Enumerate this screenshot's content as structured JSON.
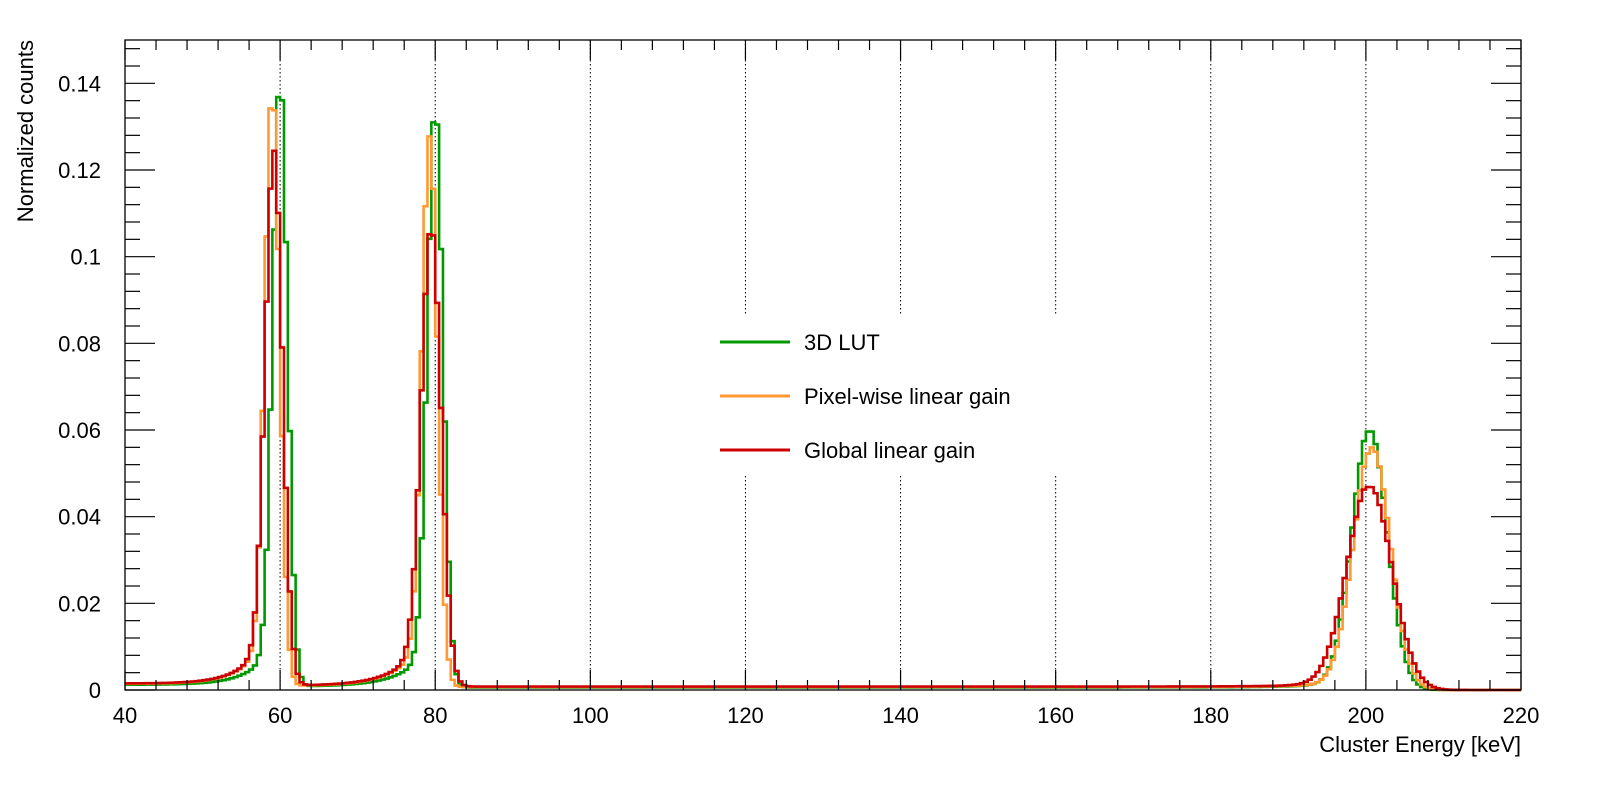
{
  "chart_data": {
    "type": "line",
    "title": "",
    "xlabel": "Cluster Energy [keV]",
    "ylabel": "Normalized counts",
    "xlim": [
      40,
      220
    ],
    "ylim": [
      0,
      0.15
    ],
    "xticks": [
      40,
      60,
      80,
      100,
      120,
      140,
      160,
      180,
      200,
      220
    ],
    "xtick_labels": [
      "40",
      "60",
      "80",
      "100",
      "120",
      "140",
      "160",
      "180",
      "200",
      "220"
    ],
    "yticks": [
      0,
      0.02,
      0.04,
      0.06,
      0.08,
      0.1,
      0.12,
      0.14
    ],
    "ytick_labels": [
      "0",
      "0.02",
      "0.04",
      "0.06",
      "0.08",
      "0.1",
      "0.12",
      "0.14"
    ],
    "vertical_reference_lines": [
      60,
      80,
      100,
      120,
      140,
      160,
      180,
      200
    ],
    "grid": "vertical dotted at x ticks",
    "legend_position": "center",
    "series": [
      {
        "name": "3D LUT",
        "color": "#009900",
        "peaks": [
          {
            "center": 60.0,
            "height": 0.14,
            "sigma": 0.95,
            "tail": 0.012,
            "tailscale": 3.0
          },
          {
            "center": 80.0,
            "height": 0.134,
            "sigma": 1.0,
            "tail": 0.011,
            "tailscale": 3.5
          },
          {
            "center": 200.5,
            "height": 0.06,
            "sigma": 2.25,
            "tail": 0.002,
            "tailscale": 5.0
          }
        ],
        "baseline": [
          {
            "from": 40,
            "to": 60,
            "value": 0.0012
          },
          {
            "from": 60,
            "to": 80,
            "value": 0.0008
          },
          {
            "from": 80,
            "to": 200,
            "value": 0.0006
          }
        ]
      },
      {
        "name": "Pixel-wise linear gain",
        "color": "#ff9933",
        "peaks": [
          {
            "center": 59.0,
            "height": 0.137,
            "sigma": 0.95,
            "tail": 0.014,
            "tailscale": 3.0
          },
          {
            "center": 79.3,
            "height": 0.127,
            "sigma": 1.0,
            "tail": 0.013,
            "tailscale": 3.5
          },
          {
            "center": 200.8,
            "height": 0.056,
            "sigma": 2.35,
            "tail": 0.002,
            "tailscale": 5.0
          }
        ],
        "baseline": [
          {
            "from": 40,
            "to": 60,
            "value": 0.0014
          },
          {
            "from": 60,
            "to": 80,
            "value": 0.0009
          },
          {
            "from": 80,
            "to": 200,
            "value": 0.0007
          }
        ]
      },
      {
        "name": "Global linear gain",
        "color": "#cc0000",
        "peaks": [
          {
            "center": 59.2,
            "height": 0.123,
            "sigma": 1.1,
            "tail": 0.015,
            "tailscale": 3.0
          },
          {
            "center": 79.5,
            "height": 0.106,
            "sigma": 1.25,
            "tail": 0.014,
            "tailscale": 3.5
          },
          {
            "center": 200.5,
            "height": 0.047,
            "sigma": 2.85,
            "tail": 0.002,
            "tailscale": 5.0
          }
        ],
        "baseline": [
          {
            "from": 40,
            "to": 60,
            "value": 0.0015
          },
          {
            "from": 60,
            "to": 80,
            "value": 0.001
          },
          {
            "from": 80,
            "to": 200,
            "value": 0.0008
          }
        ]
      }
    ],
    "bin_width": 0.5
  }
}
